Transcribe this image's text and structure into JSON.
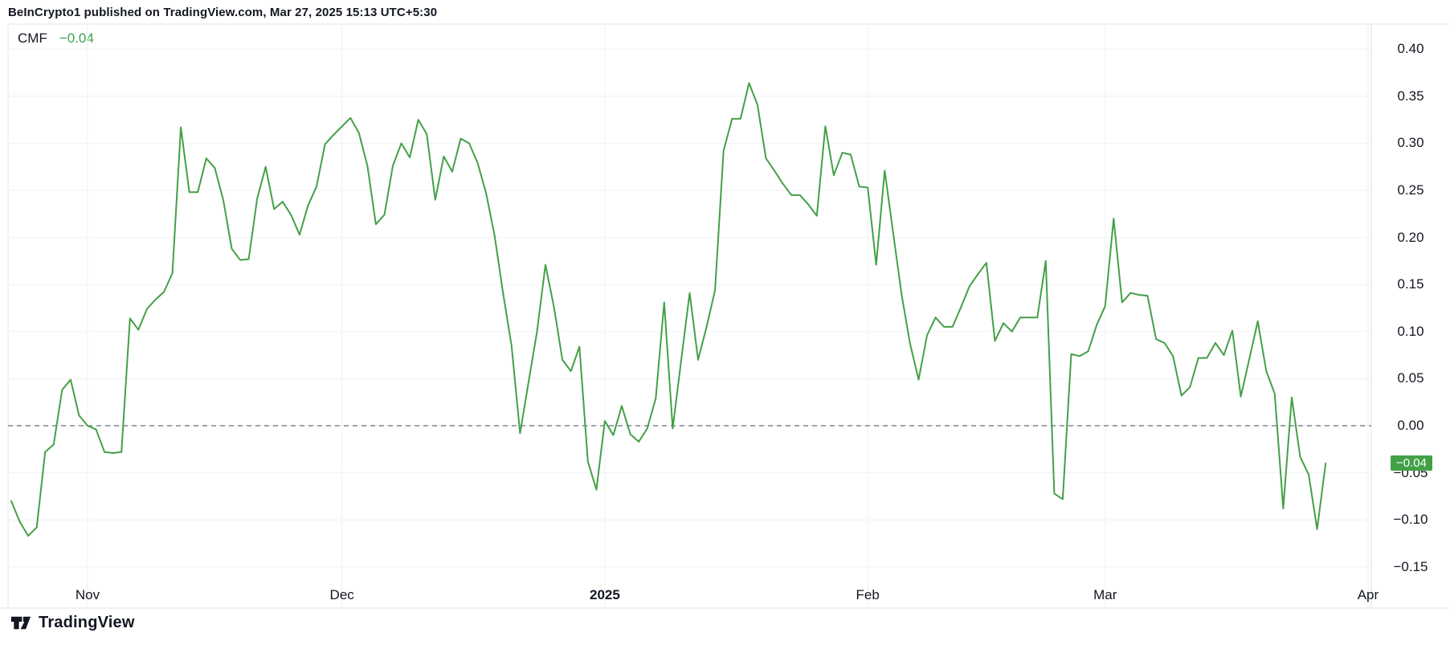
{
  "header": {
    "attribution": "BeInCrypto1 published on TradingView.com, Mar 27, 2025 15:13 UTC+5:30"
  },
  "legend": {
    "indicator": "CMF",
    "value": "−0.04"
  },
  "price_scale": {
    "last_value_badge": "−0.04"
  },
  "footer": {
    "brand": "TradingView"
  },
  "colors": {
    "background": "#ffffff",
    "line": "#43a047",
    "badge_bg": "#43a047",
    "badge_text": "#ffffff",
    "legend_value": "#3fa34a",
    "text": "#131722",
    "grid": "#eff1f5",
    "border": "#e0e3eb",
    "zero_line": "#81858f"
  },
  "chart_data": {
    "type": "line",
    "title": "CMF",
    "legend_position": "top-left",
    "grid": true,
    "interval": "1D",
    "start_date": "2024-10-23",
    "end_date": "2025-03-27",
    "ylim": [
      -0.175,
      0.425
    ],
    "y_ticks": [
      {
        "v": 0.4,
        "label": "0.40"
      },
      {
        "v": 0.35,
        "label": "0.35"
      },
      {
        "v": 0.3,
        "label": "0.30"
      },
      {
        "v": 0.25,
        "label": "0.25"
      },
      {
        "v": 0.2,
        "label": "0.20"
      },
      {
        "v": 0.15,
        "label": "0.15"
      },
      {
        "v": 0.1,
        "label": "0.10"
      },
      {
        "v": 0.05,
        "label": "0.05"
      },
      {
        "v": 0.0,
        "label": "0.00"
      },
      {
        "v": -0.05,
        "label": "−0.05"
      },
      {
        "v": -0.1,
        "label": "−0.10"
      },
      {
        "v": -0.15,
        "label": "−0.15"
      }
    ],
    "zero_line": {
      "value": 0,
      "style": "dashed"
    },
    "x_ticks": [
      {
        "label": "Nov",
        "day": 9,
        "bold": false
      },
      {
        "label": "Dec",
        "day": 39,
        "bold": false
      },
      {
        "label": "2025",
        "day": 70,
        "bold": true
      },
      {
        "label": "Feb",
        "day": 101,
        "bold": false
      },
      {
        "label": "Mar",
        "day": 129,
        "bold": false
      },
      {
        "label": "Apr",
        "day": 160,
        "bold": false
      }
    ],
    "series": [
      {
        "name": "CMF",
        "color": "#43a047",
        "last_value": -0.04,
        "values": [
          -0.08,
          -0.102,
          -0.117,
          -0.108,
          -0.028,
          -0.02,
          0.038,
          0.049,
          0.011,
          0.0,
          -0.004,
          -0.028,
          -0.029,
          -0.028,
          0.114,
          0.102,
          0.124,
          0.134,
          0.142,
          0.162,
          0.317,
          0.248,
          0.248,
          0.284,
          0.274,
          0.24,
          0.188,
          0.176,
          0.177,
          0.241,
          0.275,
          0.23,
          0.238,
          0.224,
          0.203,
          0.234,
          0.254,
          0.299,
          0.309,
          0.318,
          0.327,
          0.311,
          0.276,
          0.214,
          0.224,
          0.276,
          0.3,
          0.285,
          0.325,
          0.31,
          0.24,
          0.286,
          0.27,
          0.305,
          0.3,
          0.279,
          0.247,
          0.202,
          0.141,
          0.085,
          -0.008,
          0.046,
          0.1,
          0.171,
          0.126,
          0.07,
          0.058,
          0.084,
          -0.038,
          -0.068,
          0.005,
          -0.01,
          0.021,
          -0.009,
          -0.017,
          -0.003,
          0.029,
          0.131,
          -0.003,
          0.069,
          0.141,
          0.07,
          0.105,
          0.144,
          0.292,
          0.326,
          0.326,
          0.364,
          0.341,
          0.284,
          0.271,
          0.257,
          0.245,
          0.245,
          0.235,
          0.223,
          0.318,
          0.266,
          0.29,
          0.288,
          0.254,
          0.253,
          0.171,
          0.271,
          0.205,
          0.139,
          0.087,
          0.049,
          0.096,
          0.115,
          0.105,
          0.105,
          0.126,
          0.148,
          0.161,
          0.173,
          0.09,
          0.109,
          0.1,
          0.115,
          0.115,
          0.115,
          0.175,
          -0.072,
          -0.078,
          0.076,
          0.074,
          0.079,
          0.107,
          0.127,
          0.22,
          0.131,
          0.141,
          0.139,
          0.138,
          0.092,
          0.088,
          0.074,
          0.032,
          0.041,
          0.072,
          0.072,
          0.088,
          0.075,
          0.101,
          0.031,
          0.071,
          0.111,
          0.058,
          0.034,
          -0.088,
          0.03,
          -0.033,
          -0.052,
          -0.11,
          -0.04
        ]
      }
    ]
  }
}
